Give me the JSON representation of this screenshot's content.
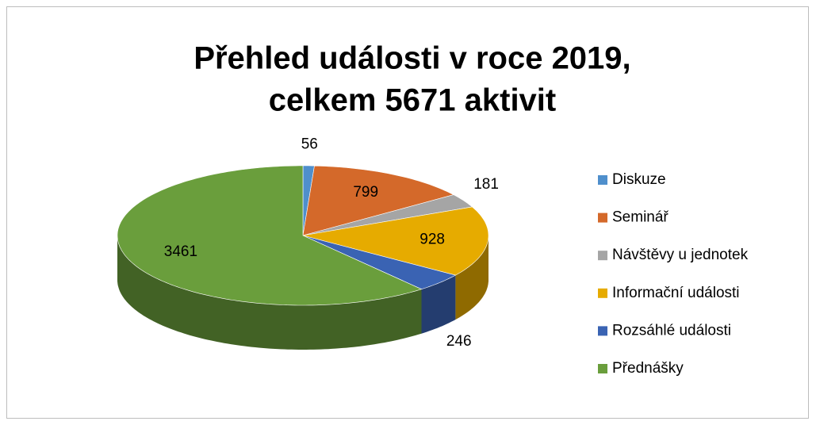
{
  "chart_data": {
    "type": "pie",
    "title": [
      "Přehled události v roce 2019,",
      "celkem 5671 aktivit"
    ],
    "categories": [
      "Diskuze",
      "Seminář",
      "Návštěvy u jednotek",
      "Informační události",
      "Rozsáhlé události",
      "Přednášky"
    ],
    "values": [
      56,
      799,
      181,
      928,
      246,
      3461
    ],
    "colors": [
      "#4f8fcc",
      "#d4692a",
      "#a5a5a5",
      "#e6ab00",
      "#3a63b3",
      "#6a9e3c"
    ],
    "legend": "right"
  }
}
